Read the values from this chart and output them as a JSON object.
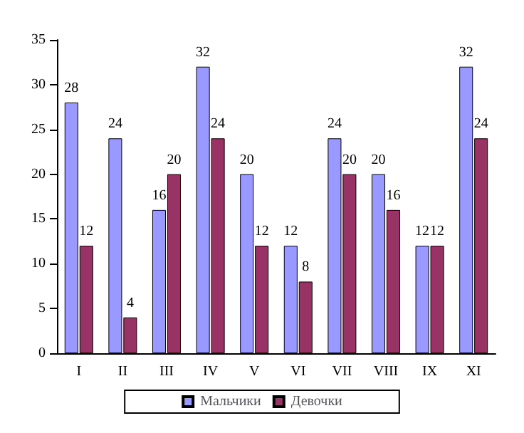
{
  "chart_data": {
    "type": "bar",
    "categories": [
      "I",
      "II",
      "III",
      "IV",
      "V",
      "VI",
      "VII",
      "VIII",
      "IX",
      "XI"
    ],
    "series": [
      {
        "name": "Мальчики",
        "color": "#9999ff",
        "values": [
          28,
          24,
          16,
          32,
          20,
          12,
          24,
          20,
          12,
          32
        ]
      },
      {
        "name": "Девочки",
        "color": "#993366",
        "values": [
          12,
          4,
          20,
          24,
          12,
          8,
          20,
          16,
          12,
          24
        ]
      }
    ],
    "ylim": [
      0,
      35
    ],
    "yticks": [
      0,
      5,
      10,
      15,
      20,
      25,
      30,
      35
    ],
    "grid": false,
    "legend": "bottom",
    "data_labels": true
  }
}
